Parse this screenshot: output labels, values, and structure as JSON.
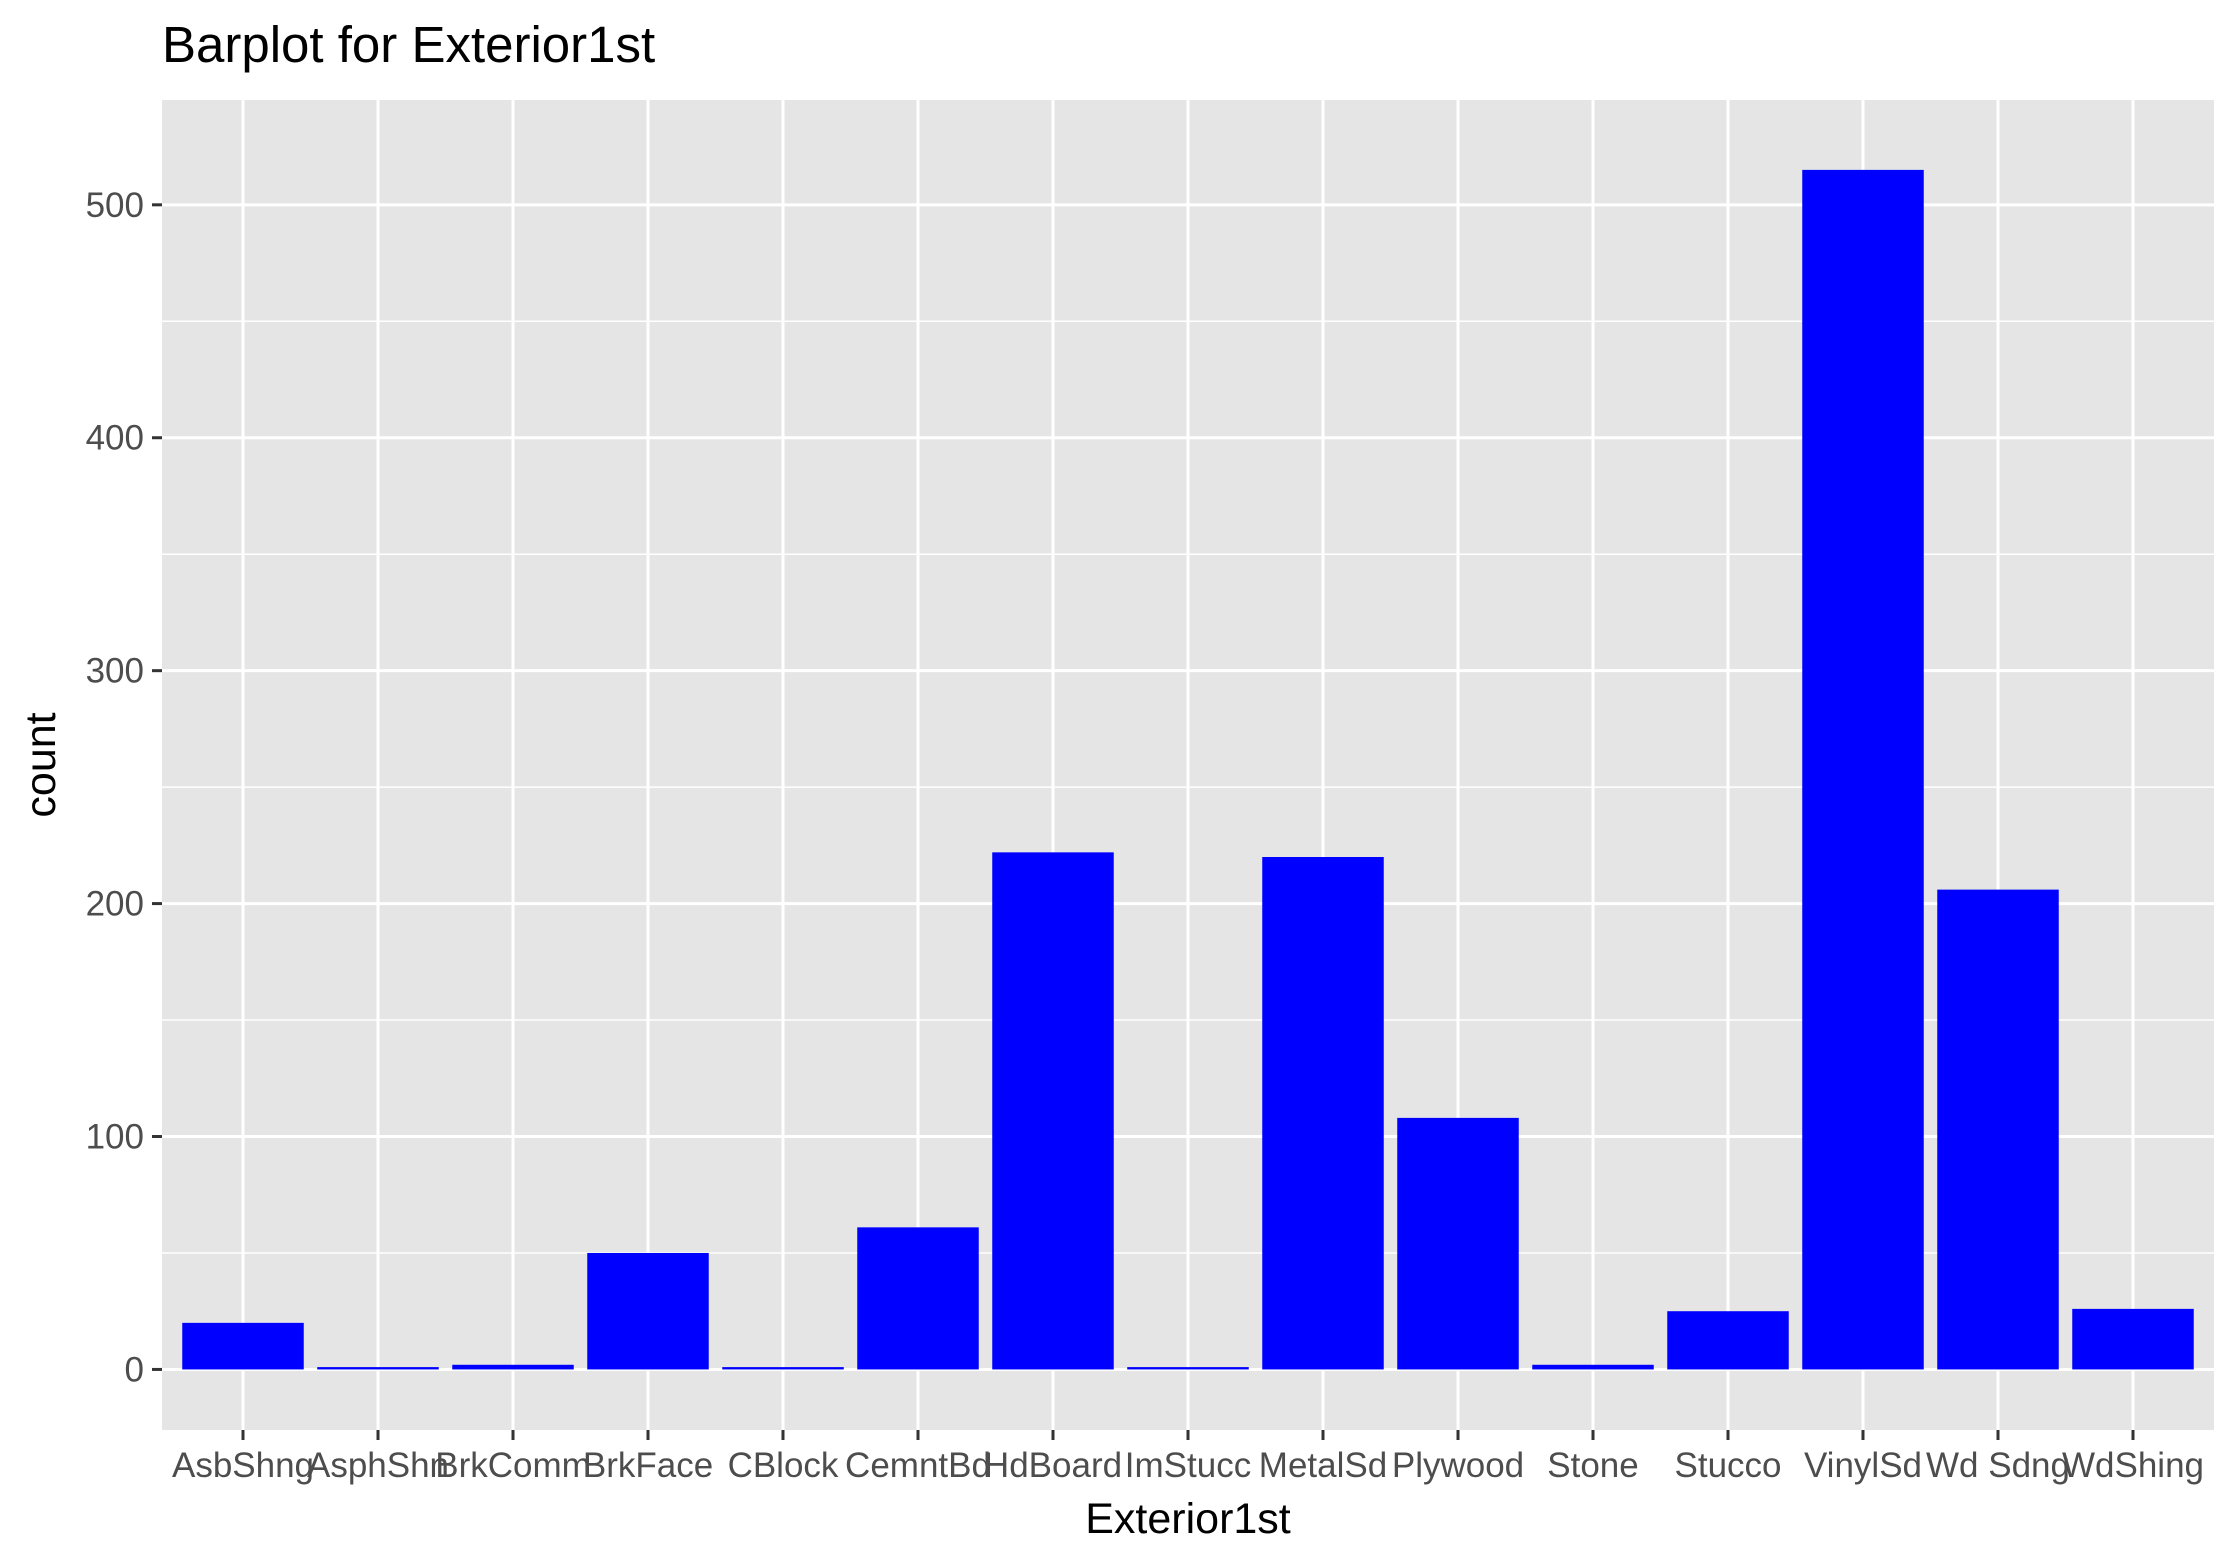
{
  "chart_data": {
    "type": "bar",
    "title": "Barplot for Exterior1st",
    "xlabel": "Exterior1st",
    "ylabel": "count",
    "categories": [
      "AsbShng",
      "AsphShn",
      "BrkComm",
      "BrkFace",
      "CBlock",
      "CemntBd",
      "HdBoard",
      "ImStucc",
      "MetalSd",
      "Plywood",
      "Stone",
      "Stucco",
      "VinylSd",
      "Wd Sdng",
      "WdShing"
    ],
    "values": [
      20,
      1,
      2,
      50,
      1,
      61,
      222,
      1,
      220,
      108,
      2,
      25,
      515,
      206,
      26
    ],
    "ylim": [
      -26,
      545
    ],
    "yticks": [
      0,
      100,
      200,
      300,
      400,
      500
    ],
    "grid": true,
    "legend": "none",
    "colors": {
      "bar": "#0000ff",
      "panel": "#e5e5e5",
      "grid": "#ffffff"
    }
  }
}
